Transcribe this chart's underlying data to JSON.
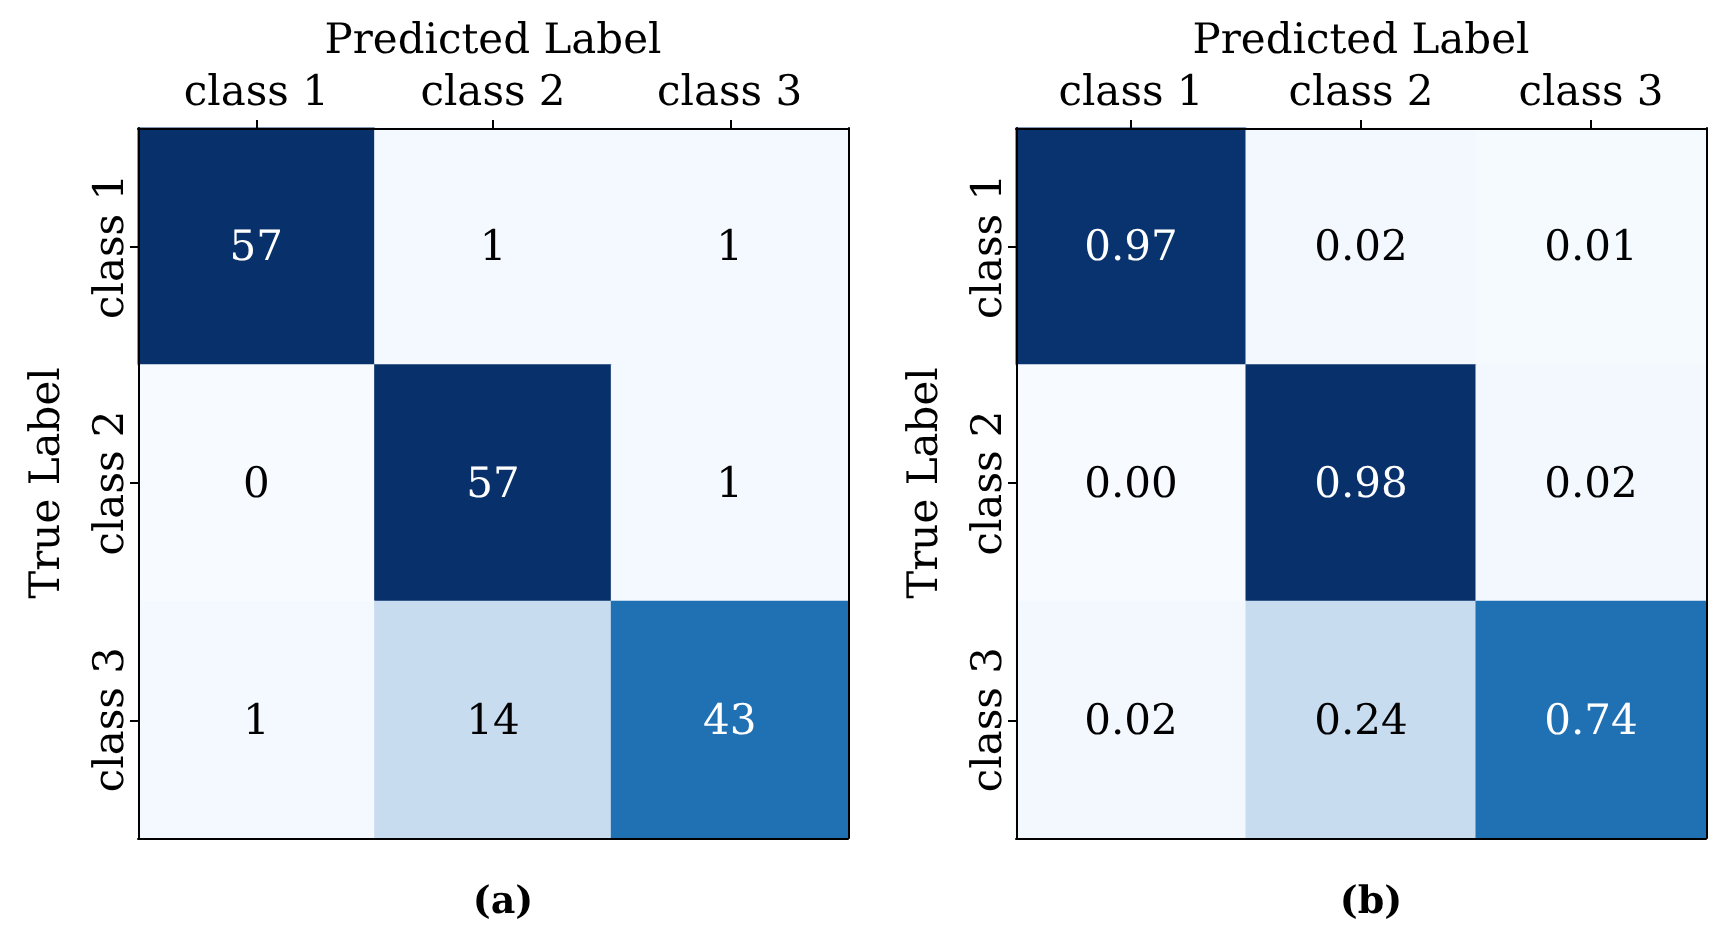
{
  "chart_data": [
    {
      "type": "heatmap",
      "title": "(a)",
      "xlabel": "Predicted Label",
      "ylabel": "True Label",
      "categories": [
        "class 1",
        "class 2",
        "class 3"
      ],
      "y_categories": [
        "class 1",
        "class 2",
        "class 3"
      ],
      "cells": [
        [
          57,
          1,
          1
        ],
        [
          0,
          57,
          1
        ],
        [
          1,
          14,
          43
        ]
      ],
      "data_labels": true
    },
    {
      "type": "heatmap",
      "title": "(b)",
      "xlabel": "Predicted Label",
      "ylabel": "True Label",
      "categories": [
        "class 1",
        "class 2",
        "class 3"
      ],
      "y_categories": [
        "class 1",
        "class 2",
        "class 3"
      ],
      "cells": [
        [
          0.97,
          0.02,
          0.01
        ],
        [
          0.0,
          0.98,
          0.02
        ],
        [
          0.02,
          0.24,
          0.74
        ]
      ],
      "cell_labels": [
        [
          "0.97",
          "0.02",
          "0.01"
        ],
        [
          "0.00",
          "0.98",
          "0.02"
        ],
        [
          "0.02",
          "0.24",
          "0.74"
        ]
      ],
      "data_labels": true
    }
  ]
}
